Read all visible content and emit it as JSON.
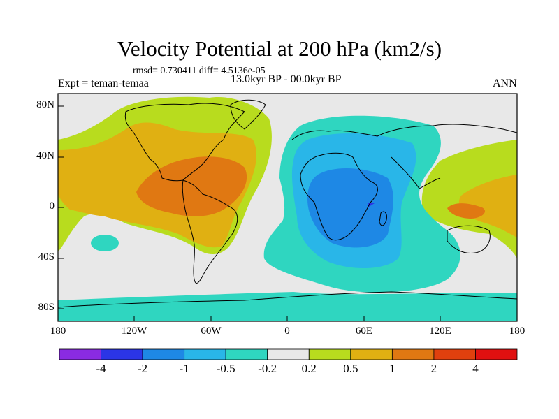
{
  "title": "Velocity Potential at 200 hPa (km2/s)",
  "stats": "rmsd= 0.730411 diff= 4.5136e-05",
  "experiment": "Expt = teman-temaa",
  "period": "13.0kyr BP - 00.0kyr BP",
  "season": "ANN",
  "y_ticks": [
    "80N",
    "40N",
    "0",
    "40S",
    "80S"
  ],
  "x_ticks": [
    "180",
    "120W",
    "60W",
    "0",
    "60E",
    "120E",
    "180"
  ],
  "colorbar": {
    "colors": [
      "#8a2be2",
      "#2b35e6",
      "#1e88e5",
      "#29b6e8",
      "#2fd6c0",
      "#e8e8e8",
      "#b8dc1e",
      "#e0b012",
      "#e07812",
      "#e0400e",
      "#e01010"
    ],
    "labels": [
      "-4",
      "-2",
      "-1",
      "-0.5",
      "-0.2",
      "0.2",
      "0.5",
      "1",
      "2",
      "4"
    ]
  }
}
